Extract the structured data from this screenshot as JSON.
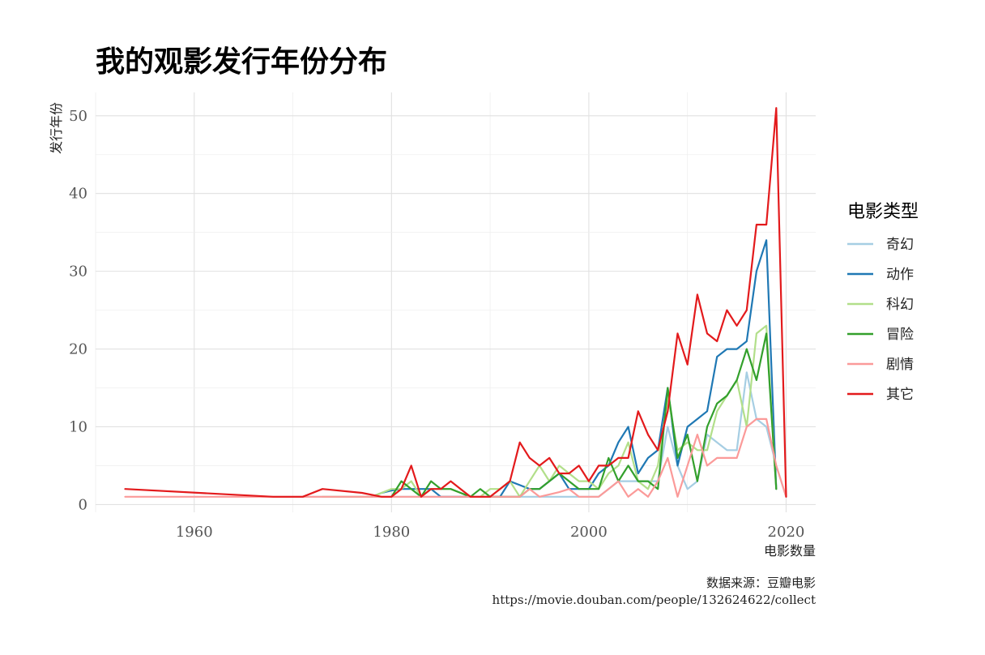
{
  "chart_data": {
    "type": "line",
    "title": "我的观影发行年份分布",
    "xlabel": "电影数量",
    "ylabel": "发行年份",
    "xlim": [
      1950,
      2023
    ],
    "ylim": [
      -1,
      53
    ],
    "x_ticks": [
      1960,
      1980,
      2000,
      2020
    ],
    "y_ticks": [
      0,
      10,
      20,
      30,
      40,
      50
    ],
    "x_tick_labels": [
      "1960",
      "1980",
      "2000",
      "2020"
    ],
    "y_tick_labels": [
      "0",
      "10",
      "20",
      "30",
      "40",
      "50"
    ],
    "grid": true,
    "legend": {
      "title": "电影类型",
      "position": "right"
    },
    "caption": [
      "数据来源：豆瓣电影",
      "https://movie.douban.com/people/132624622/collect"
    ],
    "series": [
      {
        "name": "奇幻",
        "color": "#a6cee3",
        "points": [
          [
            1971,
            1
          ],
          [
            1973,
            1
          ],
          [
            1980,
            1
          ],
          [
            1981,
            1
          ],
          [
            1982,
            1
          ],
          [
            1983,
            1
          ],
          [
            1984,
            1
          ],
          [
            1985,
            1
          ],
          [
            1987,
            1
          ],
          [
            1988,
            1
          ],
          [
            1989,
            1
          ],
          [
            1990,
            1
          ],
          [
            1991,
            1
          ],
          [
            1992,
            1
          ],
          [
            1993,
            1
          ],
          [
            1994,
            1
          ],
          [
            1995,
            1
          ],
          [
            1996,
            1
          ],
          [
            1997,
            1
          ],
          [
            1998,
            1
          ],
          [
            1999,
            1
          ],
          [
            2000,
            1
          ],
          [
            2001,
            1
          ],
          [
            2002,
            2
          ],
          [
            2003,
            3
          ],
          [
            2004,
            3
          ],
          [
            2005,
            3
          ],
          [
            2006,
            3
          ],
          [
            2007,
            3
          ],
          [
            2008,
            10
          ],
          [
            2009,
            5
          ],
          [
            2010,
            2
          ],
          [
            2011,
            3
          ],
          [
            2012,
            9
          ],
          [
            2013,
            8
          ],
          [
            2014,
            7
          ],
          [
            2015,
            7
          ],
          [
            2016,
            17
          ],
          [
            2017,
            11
          ],
          [
            2018,
            10
          ],
          [
            2019,
            5
          ],
          [
            2020,
            1
          ]
        ]
      },
      {
        "name": "动作",
        "color": "#1f78b4",
        "points": [
          [
            1978,
            1
          ],
          [
            1979,
            1.5
          ],
          [
            1980,
            1.8
          ],
          [
            1981,
            2
          ],
          [
            1982,
            2
          ],
          [
            1983,
            2
          ],
          [
            1984,
            2
          ],
          [
            1985,
            1
          ],
          [
            1986,
            1
          ],
          [
            1987,
            1
          ],
          [
            1988,
            1
          ],
          [
            1989,
            1
          ],
          [
            1990,
            1
          ],
          [
            1991,
            1
          ],
          [
            1992,
            3
          ],
          [
            1993,
            2.5
          ],
          [
            1994,
            2
          ],
          [
            1995,
            2
          ],
          [
            1996,
            3
          ],
          [
            1997,
            4
          ],
          [
            1998,
            2
          ],
          [
            1999,
            2
          ],
          [
            2000,
            2
          ],
          [
            2001,
            4
          ],
          [
            2002,
            5
          ],
          [
            2003,
            8
          ],
          [
            2004,
            10
          ],
          [
            2005,
            4
          ],
          [
            2006,
            6
          ],
          [
            2007,
            7
          ],
          [
            2008,
            15
          ],
          [
            2009,
            5
          ],
          [
            2010,
            10
          ],
          [
            2011,
            11
          ],
          [
            2012,
            12
          ],
          [
            2013,
            19
          ],
          [
            2014,
            20
          ],
          [
            2015,
            20
          ],
          [
            2016,
            21
          ],
          [
            2017,
            30
          ],
          [
            2018,
            34
          ],
          [
            2019,
            2
          ]
        ]
      },
      {
        "name": "科幻",
        "color": "#b2df8a",
        "points": [
          [
            1973,
            1
          ],
          [
            1976,
            1
          ],
          [
            1978,
            1
          ],
          [
            1980,
            2
          ],
          [
            1981,
            2
          ],
          [
            1982,
            3
          ],
          [
            1983,
            1
          ],
          [
            1984,
            2
          ],
          [
            1985,
            2
          ],
          [
            1986,
            2
          ],
          [
            1987,
            1.5
          ],
          [
            1988,
            1
          ],
          [
            1989,
            1
          ],
          [
            1990,
            2
          ],
          [
            1991,
            2
          ],
          [
            1992,
            3
          ],
          [
            1993,
            1
          ],
          [
            1994,
            3
          ],
          [
            1995,
            5
          ],
          [
            1996,
            3
          ],
          [
            1997,
            5
          ],
          [
            1998,
            4
          ],
          [
            1999,
            3
          ],
          [
            2000,
            3
          ],
          [
            2001,
            2
          ],
          [
            2002,
            4
          ],
          [
            2003,
            5
          ],
          [
            2004,
            8
          ],
          [
            2005,
            3
          ],
          [
            2006,
            2
          ],
          [
            2007,
            5
          ],
          [
            2008,
            14
          ],
          [
            2009,
            7
          ],
          [
            2010,
            8
          ],
          [
            2011,
            7
          ],
          [
            2012,
            7
          ],
          [
            2013,
            12
          ],
          [
            2014,
            14
          ],
          [
            2015,
            16
          ],
          [
            2016,
            10
          ],
          [
            2017,
            22
          ],
          [
            2018,
            23
          ],
          [
            2019,
            2
          ]
        ]
      },
      {
        "name": "冒险",
        "color": "#33a02c",
        "points": [
          [
            1980,
            1
          ],
          [
            1981,
            3
          ],
          [
            1982,
            2
          ],
          [
            1983,
            1
          ],
          [
            1984,
            3
          ],
          [
            1985,
            2
          ],
          [
            1986,
            2
          ],
          [
            1987,
            1.5
          ],
          [
            1988,
            1
          ],
          [
            1989,
            2
          ],
          [
            1990,
            1
          ],
          [
            1991,
            1
          ],
          [
            1992,
            1
          ],
          [
            1993,
            1
          ],
          [
            1994,
            2
          ],
          [
            1995,
            2
          ],
          [
            1996,
            3
          ],
          [
            1997,
            4
          ],
          [
            1998,
            3
          ],
          [
            1999,
            2
          ],
          [
            2000,
            2
          ],
          [
            2001,
            2
          ],
          [
            2002,
            6
          ],
          [
            2003,
            3
          ],
          [
            2004,
            5
          ],
          [
            2005,
            3
          ],
          [
            2006,
            3
          ],
          [
            2007,
            2
          ],
          [
            2008,
            15
          ],
          [
            2009,
            6
          ],
          [
            2010,
            9
          ],
          [
            2011,
            3
          ],
          [
            2012,
            10
          ],
          [
            2013,
            13
          ],
          [
            2014,
            14
          ],
          [
            2015,
            16
          ],
          [
            2016,
            20
          ],
          [
            2017,
            16
          ],
          [
            2018,
            22
          ],
          [
            2019,
            2
          ]
        ]
      },
      {
        "name": "剧情",
        "color": "#fb9a99",
        "points": [
          [
            1953,
            1
          ],
          [
            1960,
            1
          ],
          [
            1970,
            1
          ],
          [
            1975,
            1
          ],
          [
            1980,
            1
          ],
          [
            1985,
            1
          ],
          [
            1990,
            1
          ],
          [
            1993,
            1
          ],
          [
            1994,
            2
          ],
          [
            1995,
            1
          ],
          [
            1996,
            1.3
          ],
          [
            1997,
            1.6
          ],
          [
            1998,
            2
          ],
          [
            1999,
            1
          ],
          [
            2000,
            1
          ],
          [
            2001,
            1
          ],
          [
            2002,
            2
          ],
          [
            2003,
            3
          ],
          [
            2004,
            1
          ],
          [
            2005,
            2
          ],
          [
            2006,
            1
          ],
          [
            2007,
            3
          ],
          [
            2008,
            6
          ],
          [
            2009,
            1
          ],
          [
            2010,
            5
          ],
          [
            2011,
            9
          ],
          [
            2012,
            5
          ],
          [
            2013,
            6
          ],
          [
            2014,
            6
          ],
          [
            2015,
            6
          ],
          [
            2016,
            10
          ],
          [
            2017,
            11
          ],
          [
            2018,
            11
          ],
          [
            2019,
            5
          ],
          [
            2020,
            1
          ]
        ]
      },
      {
        "name": "其它",
        "color": "#e31a1c",
        "points": [
          [
            1953,
            2
          ],
          [
            1968,
            1
          ],
          [
            1971,
            1
          ],
          [
            1973,
            2
          ],
          [
            1977,
            1.5
          ],
          [
            1979,
            1
          ],
          [
            1980,
            1
          ],
          [
            1981,
            2
          ],
          [
            1982,
            5
          ],
          [
            1983,
            1
          ],
          [
            1984,
            2
          ],
          [
            1985,
            2
          ],
          [
            1986,
            3
          ],
          [
            1987,
            2
          ],
          [
            1988,
            1
          ],
          [
            1989,
            1
          ],
          [
            1990,
            1
          ],
          [
            1991,
            2
          ],
          [
            1992,
            3
          ],
          [
            1993,
            8
          ],
          [
            1994,
            6
          ],
          [
            1995,
            5
          ],
          [
            1996,
            6
          ],
          [
            1997,
            4
          ],
          [
            1998,
            4
          ],
          [
            1999,
            5
          ],
          [
            2000,
            3
          ],
          [
            2001,
            5
          ],
          [
            2002,
            5
          ],
          [
            2003,
            6
          ],
          [
            2004,
            6
          ],
          [
            2005,
            12
          ],
          [
            2006,
            9
          ],
          [
            2007,
            7
          ],
          [
            2008,
            12
          ],
          [
            2009,
            22
          ],
          [
            2010,
            18
          ],
          [
            2011,
            27
          ],
          [
            2012,
            22
          ],
          [
            2013,
            21
          ],
          [
            2014,
            25
          ],
          [
            2015,
            23
          ],
          [
            2016,
            25
          ],
          [
            2017,
            36
          ],
          [
            2018,
            36
          ],
          [
            2019,
            51
          ],
          [
            2020,
            1
          ]
        ]
      }
    ]
  }
}
